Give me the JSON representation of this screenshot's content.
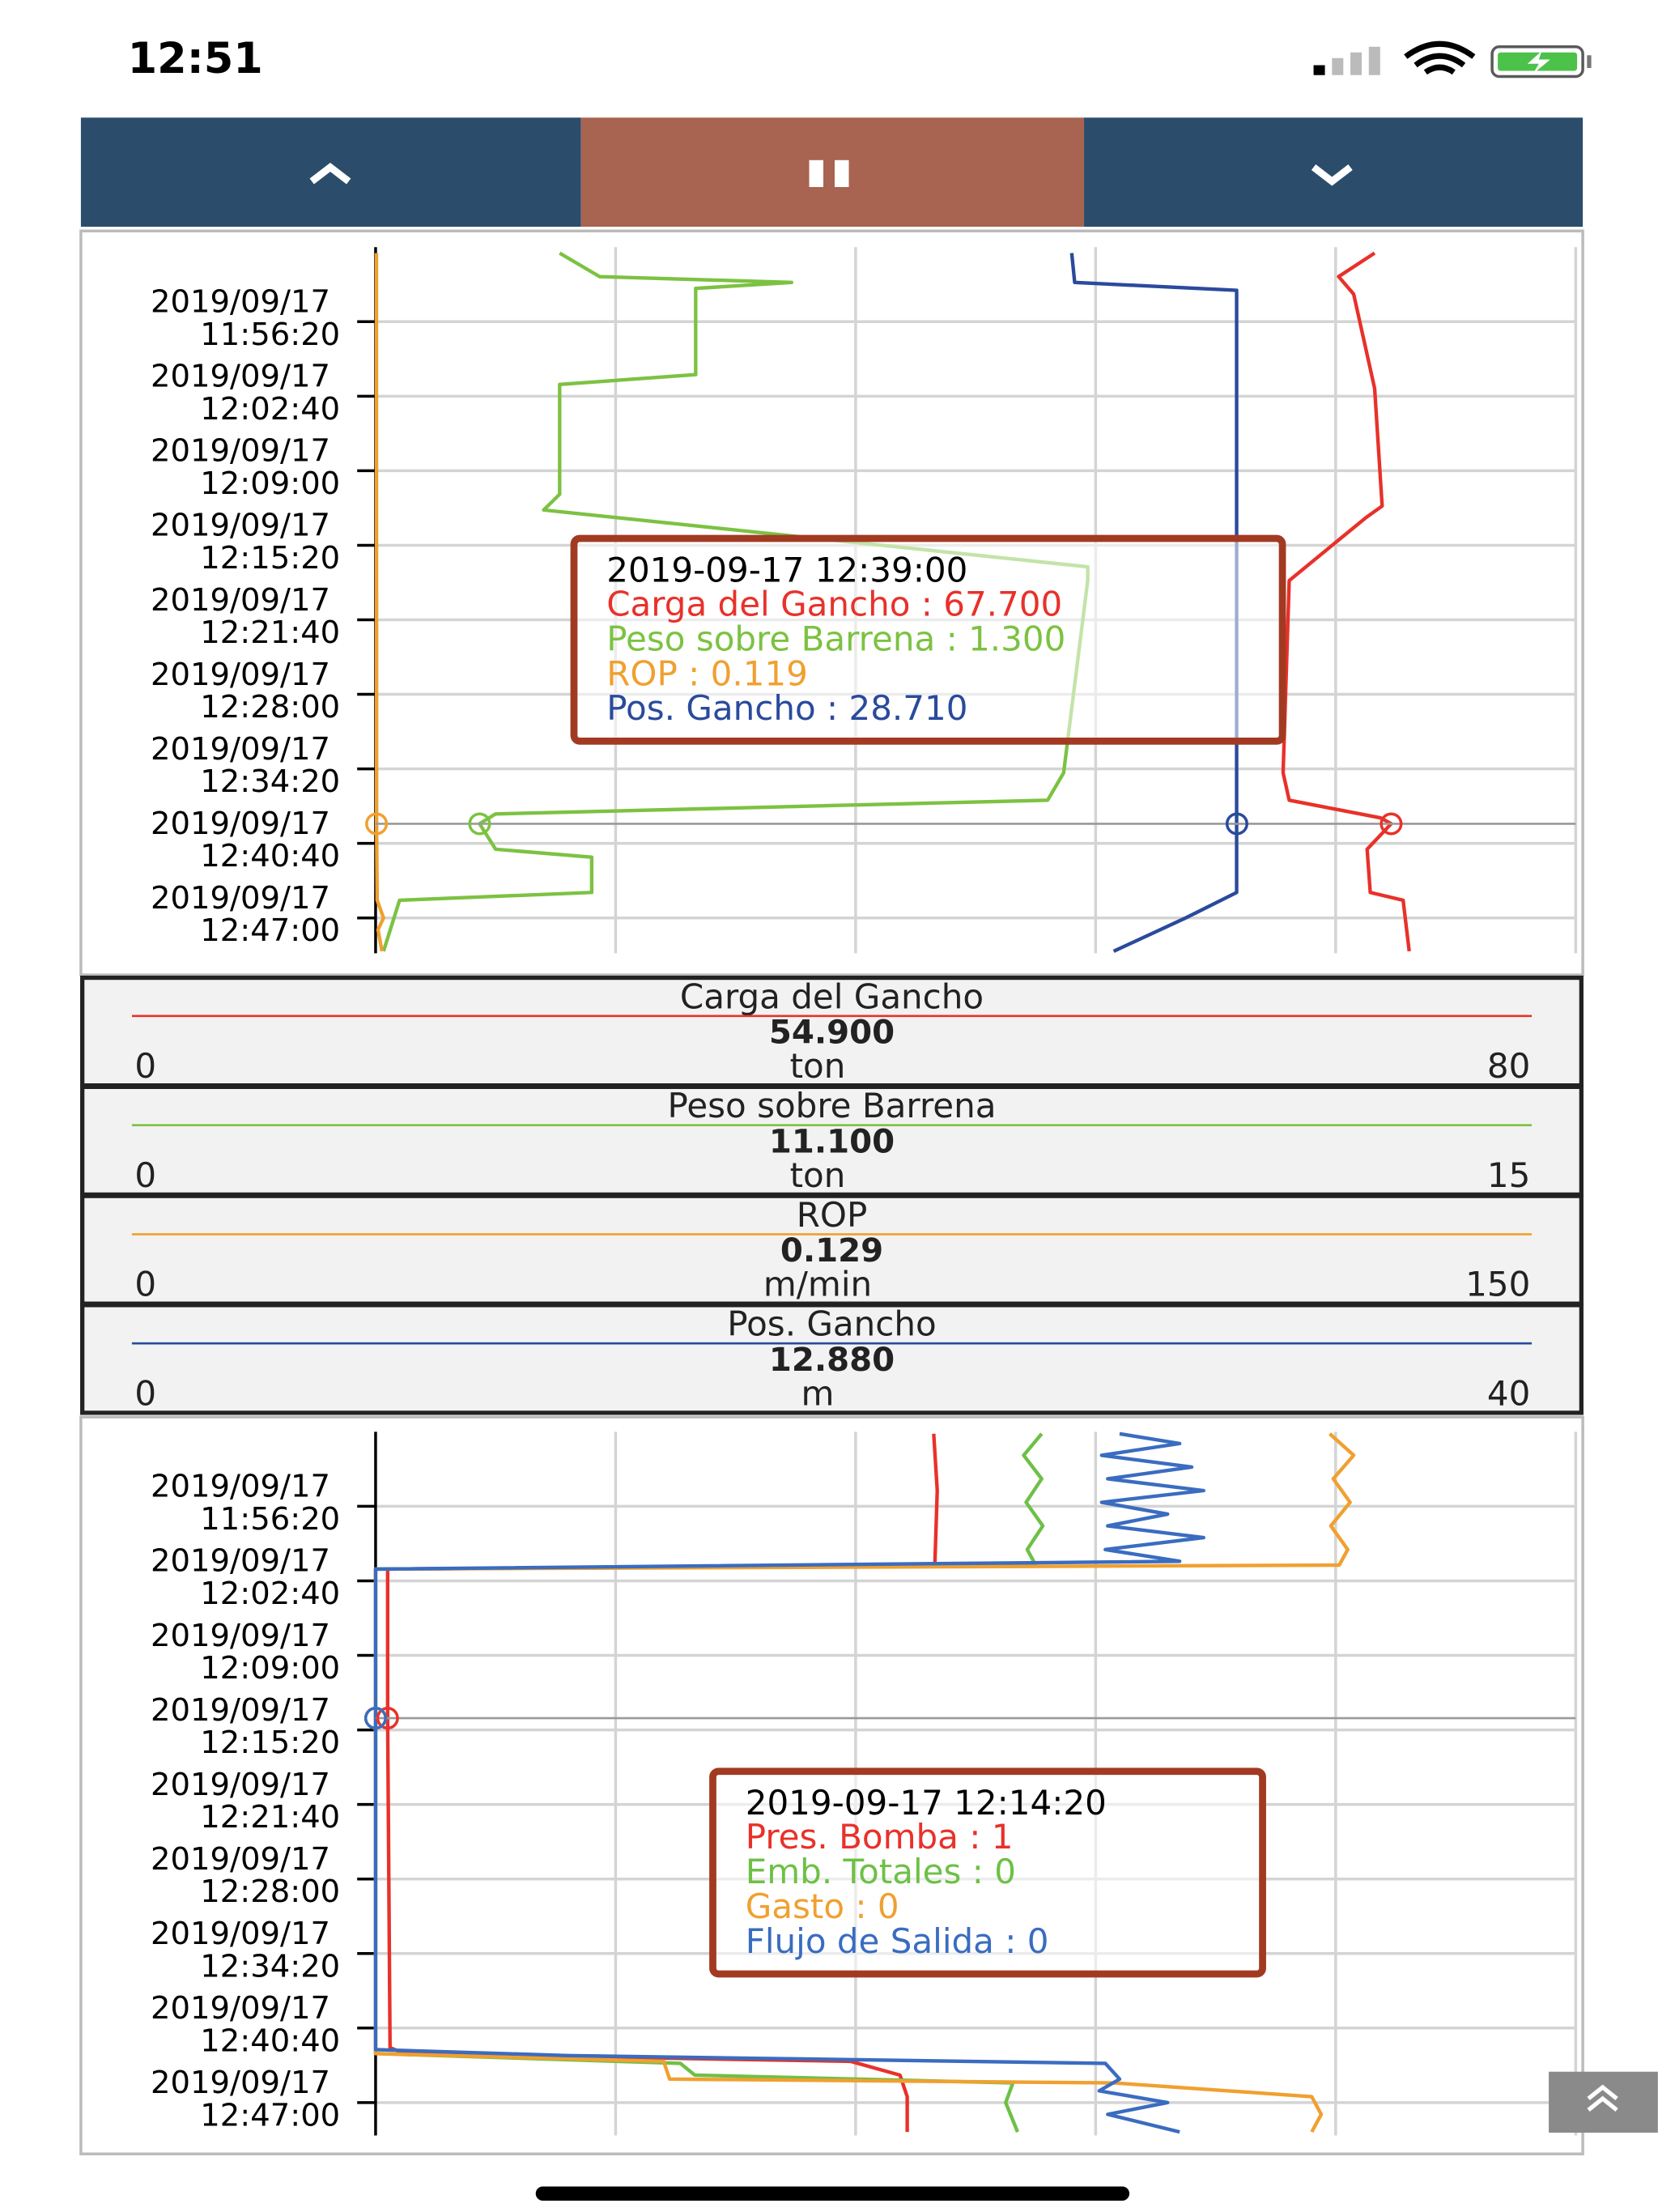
{
  "status_bar": {
    "time": "12:51"
  },
  "chart_data": [
    {
      "type": "line",
      "ylim": [
        "2019/09/17 11:50:00",
        "2019/09/17 12:50:00"
      ],
      "yticks": [
        "2019/09/17 11:56:20",
        "2019/09/17 12:02:40",
        "2019/09/17 12:09:00",
        "2019/09/17 12:15:20",
        "2019/09/17 12:21:40",
        "2019/09/17 12:28:00",
        "2019/09/17 12:34:20",
        "2019/09/17 12:40:40",
        "2019/09/17 12:47:00"
      ],
      "grid": true,
      "series": [
        {
          "name": "Carga del Gancho",
          "color": "#e8312a",
          "reading": "54.900",
          "unit": "ton",
          "xlim": [
            0,
            80
          ],
          "x": [
            "2019/09/17 11:50:30",
            "2019/09/17 11:52:30",
            "2019/09/17 11:54:00",
            "2019/09/17 12:02:00",
            "2019/09/17 12:12:00",
            "2019/09/17 12:13:00",
            "2019/09/17 12:18:20",
            "2019/09/17 12:34:40",
            "2019/09/17 12:37:00",
            "2019/09/17 12:38:30",
            "2019/09/17 12:39:00",
            "2019/09/17 12:41:10",
            "2019/09/17 12:44:50",
            "2019/09/17 12:45:30",
            "2019/09/17 12:49:50"
          ],
          "values": [
            66.6,
            64.2,
            65.2,
            66.6,
            67.1,
            66.0,
            60.9,
            60.5,
            60.9,
            67.0,
            67.7,
            66.1,
            66.3,
            68.5,
            68.9
          ]
        },
        {
          "name": "Peso sobre Barrena",
          "color": "#7cc242",
          "reading": "11.100",
          "unit": "ton",
          "xlim": [
            0,
            15
          ],
          "x": [
            "2019/09/17 11:50:30",
            "2019/09/17 11:52:30",
            "2019/09/17 11:53:00",
            "2019/09/17 11:53:30",
            "2019/09/17 12:00:50",
            "2019/09/17 12:01:40",
            "2019/09/17 12:11:00",
            "2019/09/17 12:12:20",
            "2019/09/17 12:17:10",
            "2019/09/17 12:18:20",
            "2019/09/17 12:34:40",
            "2019/09/17 12:37:00",
            "2019/09/17 12:38:10",
            "2019/09/17 12:39:00",
            "2019/09/17 12:41:10",
            "2019/09/17 12:41:50",
            "2019/09/17 12:44:50",
            "2019/09/17 12:45:30",
            "2019/09/17 12:49:50"
          ],
          "values": [
            2.3,
            2.8,
            5.2,
            4.0,
            4.0,
            2.3,
            2.3,
            2.1,
            8.9,
            8.9,
            8.6,
            8.4,
            1.5,
            1.3,
            1.5,
            2.7,
            2.7,
            0.3,
            0.1
          ]
        },
        {
          "name": "ROP",
          "color": "#f0a030",
          "reading": "0.129",
          "unit": "m/min",
          "xlim": [
            0,
            150
          ],
          "x": [
            "2019/09/17 11:50:30",
            "2019/09/17 12:39:00",
            "2019/09/17 12:45:30",
            "2019/09/17 12:47:00",
            "2019/09/17 12:48:00",
            "2019/09/17 12:49:50"
          ],
          "values": [
            0.1,
            0.119,
            0.2,
            1.0,
            0.3,
            0.8
          ]
        },
        {
          "name": "Pos. Gancho",
          "color": "#2a4a9c",
          "reading": "12.880",
          "unit": "m",
          "xlim": [
            0,
            40
          ],
          "x": [
            "2019/09/17 11:50:30",
            "2019/09/17 11:53:00",
            "2019/09/17 11:53:40",
            "2019/09/17 12:44:50",
            "2019/09/17 12:47:00",
            "2019/09/17 12:49:50"
          ],
          "values": [
            23.2,
            23.3,
            28.7,
            28.7,
            27.0,
            24.6
          ]
        }
      ],
      "tooltip": {
        "title": "2019-09-17 12:39:00",
        "lines": [
          {
            "text": "Carga del Gancho : 67.700",
            "value": 67.7
          },
          {
            "text": "Peso sobre Barrena : 1.300",
            "value": 1.3
          },
          {
            "text": "ROP : 0.119",
            "value": 0.119
          },
          {
            "text": "Pos. Gancho : 28.710",
            "value": 28.71
          }
        ]
      }
    },
    {
      "type": "line",
      "ylim": [
        "2019/09/17 11:50:00",
        "2019/09/17 12:50:00"
      ],
      "yticks": [
        "2019/09/17 11:56:20",
        "2019/09/17 12:02:40",
        "2019/09/17 12:09:00",
        "2019/09/17 12:15:20",
        "2019/09/17 12:21:40",
        "2019/09/17 12:28:00",
        "2019/09/17 12:34:20",
        "2019/09/17 12:40:40",
        "2019/09/17 12:47:00"
      ],
      "grid": true,
      "series": [
        {
          "name": "Pres. Bomba",
          "color": "#e8312a",
          "xlim": [
            0,
            100
          ],
          "x": [
            "2019/09/17 11:50:10",
            "2019/09/17 11:55:00",
            "2019/09/17 12:01:20",
            "2019/09/17 12:01:40",
            "2019/09/17 12:14:20",
            "2019/09/17 12:42:20",
            "2019/09/17 12:42:50",
            "2019/09/17 12:43:30",
            "2019/09/17 12:44:40",
            "2019/09/17 12:46:30",
            "2019/09/17 12:49:30"
          ],
          "values": [
            46.5,
            46.8,
            46.6,
            1,
            1,
            1.2,
            2.4,
            39.6,
            43.7,
            44.3,
            44.3
          ]
        },
        {
          "name": "Emb. Totales",
          "color": "#6ec046",
          "xlim": [
            0,
            100
          ],
          "x": [
            "2019/09/17 11:50:10",
            "2019/09/17 11:52:00",
            "2019/09/17 11:54:00",
            "2019/09/17 11:56:00",
            "2019/09/17 11:58:00",
            "2019/09/17 12:00:00",
            "2019/09/17 12:01:20",
            "2019/09/17 12:01:40",
            "2019/09/17 12:14:20",
            "2019/09/17 12:42:50",
            "2019/09/17 12:43:40",
            "2019/09/17 12:44:40",
            "2019/09/17 12:45:20",
            "2019/09/17 12:47:00",
            "2019/09/17 12:49:30"
          ],
          "values": [
            55.5,
            54.0,
            55.5,
            54.2,
            55.6,
            54.3,
            55.0,
            0,
            0,
            0,
            25.4,
            26.6,
            53.1,
            52.5,
            53.5
          ]
        },
        {
          "name": "Gasto",
          "color": "#f0a030",
          "xlim": [
            0,
            100
          ],
          "x": [
            "2019/09/17 11:50:10",
            "2019/09/17 11:52:00",
            "2019/09/17 11:54:00",
            "2019/09/17 11:56:00",
            "2019/09/17 11:58:00",
            "2019/09/17 12:00:00",
            "2019/09/17 12:01:20",
            "2019/09/17 12:01:40",
            "2019/09/17 12:14:20",
            "2019/09/17 12:42:50",
            "2019/09/17 12:43:30",
            "2019/09/17 12:45:00",
            "2019/09/17 12:45:20",
            "2019/09/17 12:46:30",
            "2019/09/17 12:48:00",
            "2019/09/17 12:49:30"
          ],
          "values": [
            79.5,
            81.5,
            79.8,
            81.2,
            79.6,
            81.0,
            80.3,
            0,
            0,
            0,
            24,
            24.5,
            61.5,
            78,
            78.8,
            78
          ]
        },
        {
          "name": "Flujo de Salida",
          "color": "#3a6cc0",
          "xlim": [
            0,
            100
          ],
          "x": [
            "2019/09/17 11:50:10",
            "2019/09/17 11:51:00",
            "2019/09/17 11:52:00",
            "2019/09/17 11:53:00",
            "2019/09/17 11:54:00",
            "2019/09/17 11:55:00",
            "2019/09/17 11:56:00",
            "2019/09/17 11:57:00",
            "2019/09/17 11:58:00",
            "2019/09/17 11:59:00",
            "2019/09/17 12:00:00",
            "2019/09/17 12:01:00",
            "2019/09/17 12:01:40",
            "2019/09/17 12:14:20",
            "2019/09/17 12:42:30",
            "2019/09/17 12:43:00",
            "2019/09/17 12:43:40",
            "2019/09/17 12:45:00",
            "2019/09/17 12:46:00",
            "2019/09/17 12:47:00",
            "2019/09/17 12:48:00",
            "2019/09/17 12:49:30"
          ],
          "values": [
            62,
            67,
            60.5,
            68,
            61,
            69,
            60.5,
            66,
            61,
            69,
            60.8,
            67,
            0,
            0,
            0,
            16,
            60.8,
            62,
            60.3,
            66,
            61,
            67
          ]
        }
      ],
      "tooltip": {
        "title": "2019-09-17 12:14:20",
        "lines": [
          {
            "text": "Pres. Bomba : 1",
            "value": 1
          },
          {
            "text": "Emb. Totales : 0",
            "value": 0
          },
          {
            "text": "Gasto : 0",
            "value": 0
          },
          {
            "text": "Flujo de Salida : 0",
            "value": 0
          }
        ]
      }
    }
  ]
}
